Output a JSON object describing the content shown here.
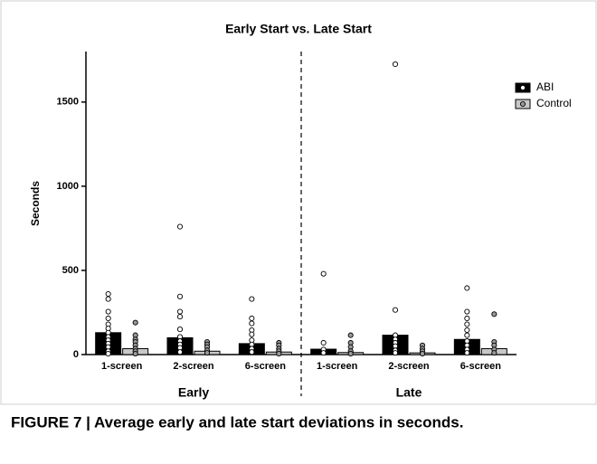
{
  "chart_data": {
    "type": "bar",
    "title": "Early Start vs. Late Start",
    "y_label": "Seconds",
    "groups": [
      "Early",
      "Late"
    ],
    "categories": [
      "1-screen",
      "2-screen",
      "6-screen",
      "1-screen",
      "2-screen",
      "6-screen"
    ],
    "series": [
      {
        "name": "ABI",
        "color": "#000000",
        "point_fill": "#ffffff",
        "values": [
          130,
          100,
          65,
          32,
          115,
          90
        ],
        "points": [
          [
            360,
            330,
            255,
            215,
            180,
            155,
            130,
            105,
            85,
            65,
            45,
            20,
            5
          ],
          [
            760,
            345,
            255,
            225,
            150,
            105,
            80,
            60,
            40,
            15
          ],
          [
            330,
            215,
            185,
            145,
            120,
            85,
            60,
            35,
            15
          ],
          [
            480,
            70,
            30,
            10
          ],
          [
            1725,
            265,
            115,
            90,
            70,
            50,
            25,
            10
          ],
          [
            395,
            255,
            215,
            180,
            145,
            115,
            80,
            55,
            30,
            10
          ]
        ]
      },
      {
        "name": "Control",
        "color": "#c8c8c8",
        "point_fill": "#999999",
        "values": [
          35,
          20,
          15,
          12,
          10,
          35
        ],
        "points": [
          [
            190,
            115,
            90,
            75,
            55,
            35,
            20,
            5
          ],
          [
            75,
            60,
            45,
            25,
            10
          ],
          [
            70,
            55,
            35,
            20,
            5
          ],
          [
            115,
            70,
            45,
            20,
            5
          ],
          [
            55,
            35,
            20,
            5
          ],
          [
            240,
            75,
            55,
            30,
            10
          ]
        ]
      }
    ],
    "ylim": [
      0,
      1800
    ],
    "yticks": [
      0,
      500,
      1000,
      1500
    ],
    "legend": "top-right"
  },
  "caption": "FIGURE 7 | Average early and late start deviations in seconds."
}
